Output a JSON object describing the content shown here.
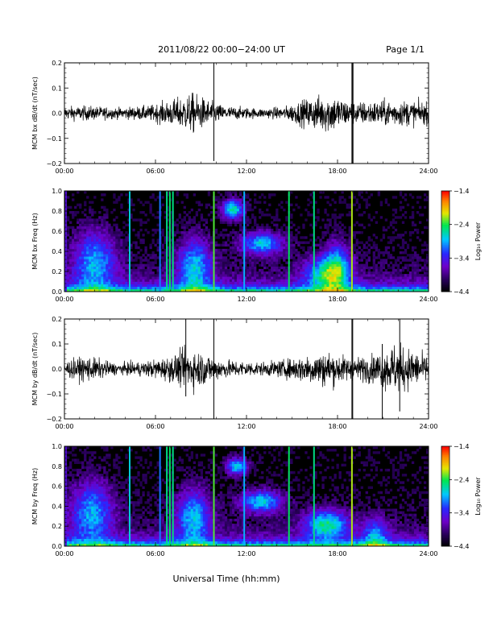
{
  "header": {
    "title": "2011/08/22  00:00−24:00 UT",
    "page": "Page 1/1"
  },
  "xlabel": "Universal Time (hh:mm)",
  "chart_data": [
    {
      "type": "line",
      "ylabel": "MCM bx dB/dt (nT/sec)",
      "xlim": [
        0,
        24
      ],
      "ylim": [
        -0.2,
        0.2
      ],
      "xticks": [
        "00:00",
        "06:00",
        "12:00",
        "18:00",
        "24:00"
      ],
      "yticks": [
        "−0.2",
        "−0.1",
        "0.0",
        "0.1",
        "0.2"
      ],
      "activity": [
        [
          0,
          0.018
        ],
        [
          1.5,
          0.02
        ],
        [
          3.5,
          0.015
        ],
        [
          5.5,
          0.02
        ],
        [
          7.0,
          0.035
        ],
        [
          8.5,
          0.055
        ],
        [
          9.5,
          0.035
        ],
        [
          10.5,
          0.02
        ],
        [
          13.0,
          0.013
        ],
        [
          14.5,
          0.018
        ],
        [
          16.0,
          0.04
        ],
        [
          17.5,
          0.055
        ],
        [
          19.0,
          0.03
        ],
        [
          21.0,
          0.035
        ],
        [
          22.5,
          0.035
        ],
        [
          24,
          0.03
        ]
      ],
      "spikes": [
        [
          9.85,
          0.22,
          -0.19
        ],
        [
          18.95,
          0.22,
          -0.22
        ],
        [
          19.0,
          0.2,
          -0.2
        ],
        [
          19.02,
          0.2,
          -0.2
        ]
      ]
    },
    {
      "type": "heatmap",
      "ylabel": "MCM bx Freq (Hz)",
      "xlim": [
        0,
        24
      ],
      "ylim": [
        0,
        1
      ],
      "xticks": [
        "00:00",
        "06:00",
        "12:00",
        "18:00",
        "24:00"
      ],
      "yticks": [
        "0.0",
        "0.2",
        "0.4",
        "0.6",
        "0.8",
        "1.0"
      ],
      "colorbar": {
        "label": "Log₁₀ Power",
        "ticks": [
          "−1.4",
          "−2.4",
          "−3.4",
          "−4.4"
        ],
        "range": [
          -4.4,
          -1.4
        ]
      },
      "vertical_lines": [
        [
          0.1,
          0.3
        ],
        [
          4.3,
          0.55
        ],
        [
          6.3,
          0.45
        ],
        [
          6.75,
          0.62
        ],
        [
          6.95,
          0.65
        ],
        [
          7.15,
          0.62
        ],
        [
          9.85,
          0.7
        ],
        [
          11.85,
          0.5
        ],
        [
          14.8,
          0.65
        ],
        [
          16.45,
          0.62
        ],
        [
          18.95,
          0.75
        ]
      ],
      "blobs": [
        [
          2.0,
          0.3,
          1.0,
          0.22,
          0.4
        ],
        [
          8.6,
          0.25,
          0.8,
          0.2,
          0.42
        ],
        [
          11.1,
          0.82,
          0.5,
          0.07,
          0.55
        ],
        [
          13.0,
          0.48,
          1.0,
          0.08,
          0.45
        ],
        [
          17.2,
          0.18,
          1.0,
          0.12,
          0.42
        ],
        [
          18.0,
          0.25,
          0.6,
          0.18,
          0.35
        ]
      ]
    },
    {
      "type": "line",
      "ylabel": "MCM by dB/dt (nT/sec)",
      "xlim": [
        0,
        24
      ],
      "ylim": [
        -0.2,
        0.2
      ],
      "xticks": [
        "00:00",
        "06:00",
        "12:00",
        "18:00",
        "24:00"
      ],
      "yticks": [
        "−0.2",
        "−0.1",
        "0.0",
        "0.1",
        "0.2"
      ],
      "activity": [
        [
          0,
          0.022
        ],
        [
          1.5,
          0.035
        ],
        [
          3.5,
          0.015
        ],
        [
          5.5,
          0.022
        ],
        [
          7.0,
          0.035
        ],
        [
          8.3,
          0.06
        ],
        [
          9.5,
          0.04
        ],
        [
          10.5,
          0.025
        ],
        [
          13.0,
          0.018
        ],
        [
          14.5,
          0.025
        ],
        [
          16.0,
          0.04
        ],
        [
          17.3,
          0.05
        ],
        [
          19.0,
          0.03
        ],
        [
          20.5,
          0.04
        ],
        [
          21.8,
          0.07
        ],
        [
          24,
          0.035
        ]
      ],
      "spikes": [
        [
          8.0,
          0.21,
          -0.11
        ],
        [
          9.85,
          0.22,
          -0.2
        ],
        [
          18.95,
          0.21,
          -0.22
        ],
        [
          19.0,
          0.2,
          -0.2
        ],
        [
          20.95,
          0.1,
          -0.2
        ],
        [
          22.1,
          0.2,
          -0.17
        ]
      ]
    },
    {
      "type": "heatmap",
      "ylabel": "MCM by Freq (Hz)",
      "xlim": [
        0,
        24
      ],
      "ylim": [
        0,
        1
      ],
      "xticks": [
        "00:00",
        "06:00",
        "12:00",
        "18:00",
        "24:00"
      ],
      "yticks": [
        "0.0",
        "0.2",
        "0.4",
        "0.6",
        "0.8",
        "1.0"
      ],
      "colorbar": {
        "label": "Log₁₀ Power",
        "ticks": [
          "−1.4",
          "−2.4",
          "−3.4",
          "−4.4"
        ],
        "range": [
          -4.4,
          -1.4
        ]
      },
      "vertical_lines": [
        [
          0.1,
          0.3
        ],
        [
          4.3,
          0.55
        ],
        [
          6.3,
          0.45
        ],
        [
          6.75,
          0.62
        ],
        [
          6.95,
          0.65
        ],
        [
          7.15,
          0.62
        ],
        [
          9.85,
          0.7
        ],
        [
          11.85,
          0.5
        ],
        [
          14.8,
          0.65
        ],
        [
          16.45,
          0.62
        ],
        [
          18.95,
          0.75
        ]
      ],
      "blobs": [
        [
          1.8,
          0.35,
          1.0,
          0.22,
          0.4
        ],
        [
          8.5,
          0.3,
          0.8,
          0.2,
          0.42
        ],
        [
          11.4,
          0.8,
          0.5,
          0.06,
          0.5
        ],
        [
          13.0,
          0.45,
          1.0,
          0.08,
          0.45
        ],
        [
          17.3,
          0.22,
          1.0,
          0.1,
          0.5
        ],
        [
          20.5,
          0.12,
          0.6,
          0.12,
          0.3
        ]
      ]
    }
  ]
}
